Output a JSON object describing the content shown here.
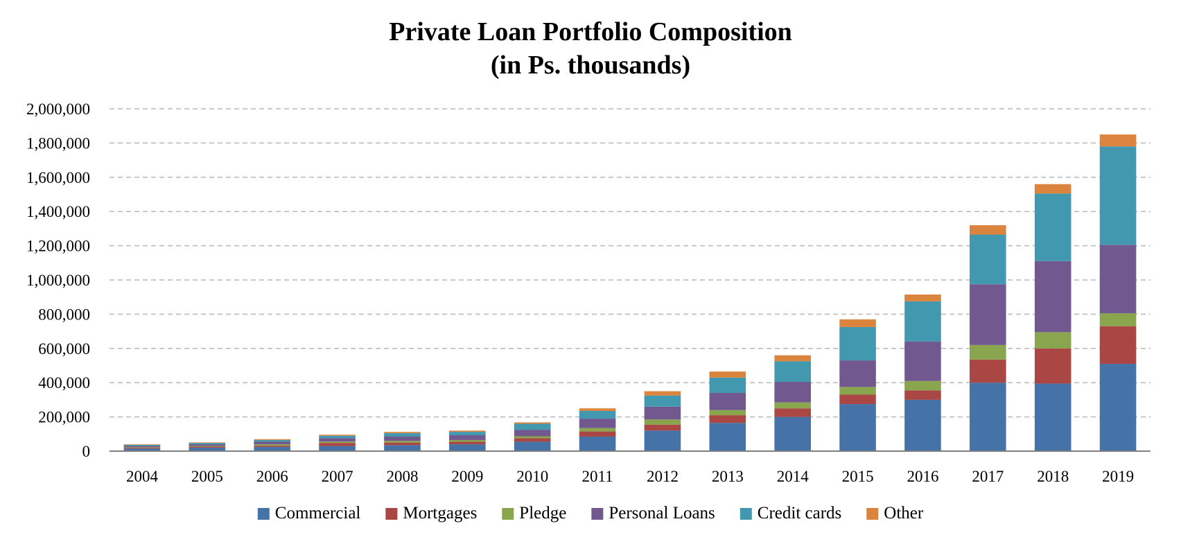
{
  "chart_data": {
    "type": "bar",
    "stacked": true,
    "title": "Private Loan Portfolio Composition",
    "subtitle": "(in Ps. thousands)",
    "xlabel": "",
    "ylabel": "",
    "ylim": [
      0,
      2000000
    ],
    "yticks": [
      "0",
      "200,000",
      "400,000",
      "600,000",
      "800,000",
      "1,000,000",
      "1,200,000",
      "1,400,000",
      "1,600,000",
      "1,800,000",
      "2,000,000"
    ],
    "ytick_values": [
      0,
      200000,
      400000,
      600000,
      800000,
      1000000,
      1200000,
      1400000,
      1600000,
      1800000,
      2000000
    ],
    "grid": true,
    "legend_position": "bottom",
    "categories": [
      "2004",
      "2005",
      "2006",
      "2007",
      "2008",
      "2009",
      "2010",
      "2011",
      "2012",
      "2013",
      "2014",
      "2015",
      "2016",
      "2017",
      "2018",
      "2019"
    ],
    "series": [
      {
        "name": "Commercial",
        "color": "#4572A7",
        "values": [
          15000,
          20000,
          25000,
          30000,
          35000,
          40000,
          55000,
          85000,
          120000,
          165000,
          200000,
          275000,
          300000,
          400000,
          395000,
          510000
        ]
      },
      {
        "name": "Mortgages",
        "color": "#AA4643",
        "values": [
          5000,
          6000,
          8000,
          18000,
          15000,
          15000,
          20000,
          30000,
          35000,
          45000,
          50000,
          55000,
          55000,
          135000,
          205000,
          220000
        ]
      },
      {
        "name": "Pledge",
        "color": "#89A54E",
        "values": [
          3000,
          4000,
          7000,
          8000,
          10000,
          10000,
          12000,
          20000,
          30000,
          30000,
          35000,
          45000,
          55000,
          85000,
          95000,
          75000
        ]
      },
      {
        "name": "Personal Loans",
        "color": "#71588F",
        "values": [
          7000,
          10000,
          15000,
          20000,
          25000,
          28000,
          38000,
          55000,
          75000,
          100000,
          120000,
          155000,
          230000,
          355000,
          415000,
          400000
        ]
      },
      {
        "name": "Credit cards",
        "color": "#4198AF",
        "values": [
          7000,
          8000,
          10000,
          14000,
          20000,
          20000,
          35000,
          45000,
          65000,
          90000,
          120000,
          195000,
          235000,
          290000,
          395000,
          575000
        ]
      },
      {
        "name": "Other",
        "color": "#DB843D",
        "values": [
          3000,
          3000,
          5000,
          6000,
          7000,
          7000,
          8000,
          15000,
          25000,
          35000,
          35000,
          45000,
          40000,
          55000,
          55000,
          70000
        ]
      }
    ]
  }
}
